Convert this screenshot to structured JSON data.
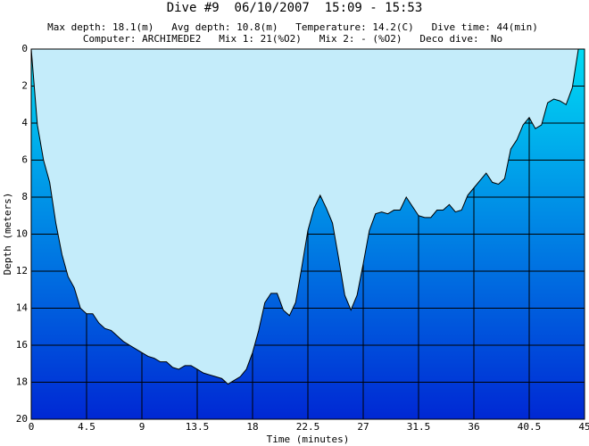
{
  "chart_data": {
    "type": "area",
    "title": "Dive #9  06/10/2007  15:09 - 15:53",
    "subtitle": [
      "Max depth: 18.1(m)   Avg depth: 10.8(m)   Temperature: 14.2(C)   Dive time: 44(min)",
      "Computer: ARCHIMEDE2   Mix 1: 21(%O2)   Mix 2: - (%O2)   Deco dive:  No"
    ],
    "x_label": "Time (minutes)",
    "y_label": "Depth (meters)",
    "x": [
      0,
      0.5,
      1,
      1.5,
      2,
      2.5,
      3,
      3.5,
      4,
      4.5,
      5,
      5.5,
      6,
      6.5,
      7,
      7.5,
      8,
      8.5,
      9,
      9.5,
      10,
      10.5,
      11,
      11.5,
      12,
      12.5,
      13,
      13.5,
      14,
      14.5,
      15,
      15.5,
      16,
      16.5,
      17,
      17.5,
      18,
      18.5,
      19,
      19.5,
      20,
      20.5,
      21,
      21.5,
      22,
      22.5,
      23,
      23.5,
      24,
      24.5,
      25,
      25.5,
      26,
      26.5,
      27,
      27.5,
      28,
      28.5,
      29,
      29.5,
      30,
      30.5,
      31,
      31.5,
      32,
      32.5,
      33,
      33.5,
      34,
      34.5,
      35,
      35.5,
      36,
      36.5,
      37,
      37.5,
      38,
      38.5,
      39,
      39.5,
      40,
      40.5,
      41,
      41.5,
      42,
      42.5,
      43,
      43.5,
      44,
      44.5
    ],
    "values": [
      0,
      4.1,
      6,
      7.2,
      9.4,
      11.1,
      12.3,
      12.9,
      14,
      14.3,
      14.3,
      14.8,
      15.1,
      15.2,
      15.5,
      15.8,
      16,
      16.2,
      16.4,
      16.6,
      16.7,
      16.9,
      16.9,
      17.2,
      17.3,
      17.1,
      17.1,
      17.3,
      17.5,
      17.6,
      17.7,
      17.8,
      18.1,
      17.9,
      17.7,
      17.3,
      16.4,
      15.2,
      13.7,
      13.2,
      13.2,
      14.1,
      14.4,
      13.7,
      11.8,
      9.8,
      8.6,
      7.9,
      8.6,
      9.4,
      11.3,
      13.3,
      14.1,
      13.3,
      11.6,
      9.8,
      8.9,
      8.8,
      8.9,
      8.7,
      8.7,
      8,
      8.5,
      9,
      9.1,
      9.1,
      8.7,
      8.7,
      8.4,
      8.8,
      8.7,
      7.9,
      7.5,
      7.1,
      6.7,
      7.2,
      7.3,
      7,
      5.4,
      4.9,
      4.1,
      3.7,
      4.3,
      4.1,
      2.9,
      2.7,
      2.8,
      3,
      2.1,
      0
    ],
    "xlim": [
      0,
      45
    ],
    "xticks": [
      0,
      4.5,
      9,
      13.5,
      18,
      22.5,
      27,
      31.5,
      36,
      40.5,
      45
    ],
    "ylim": [
      0,
      20
    ],
    "yticks": [
      0,
      2,
      4,
      6,
      8,
      10,
      12,
      14,
      16,
      18,
      20
    ],
    "y_inverted": true,
    "grid": true,
    "colors": {
      "surface": "#c4ecfa",
      "shallow": "#00dcf4",
      "deep": "#0028d4"
    }
  }
}
